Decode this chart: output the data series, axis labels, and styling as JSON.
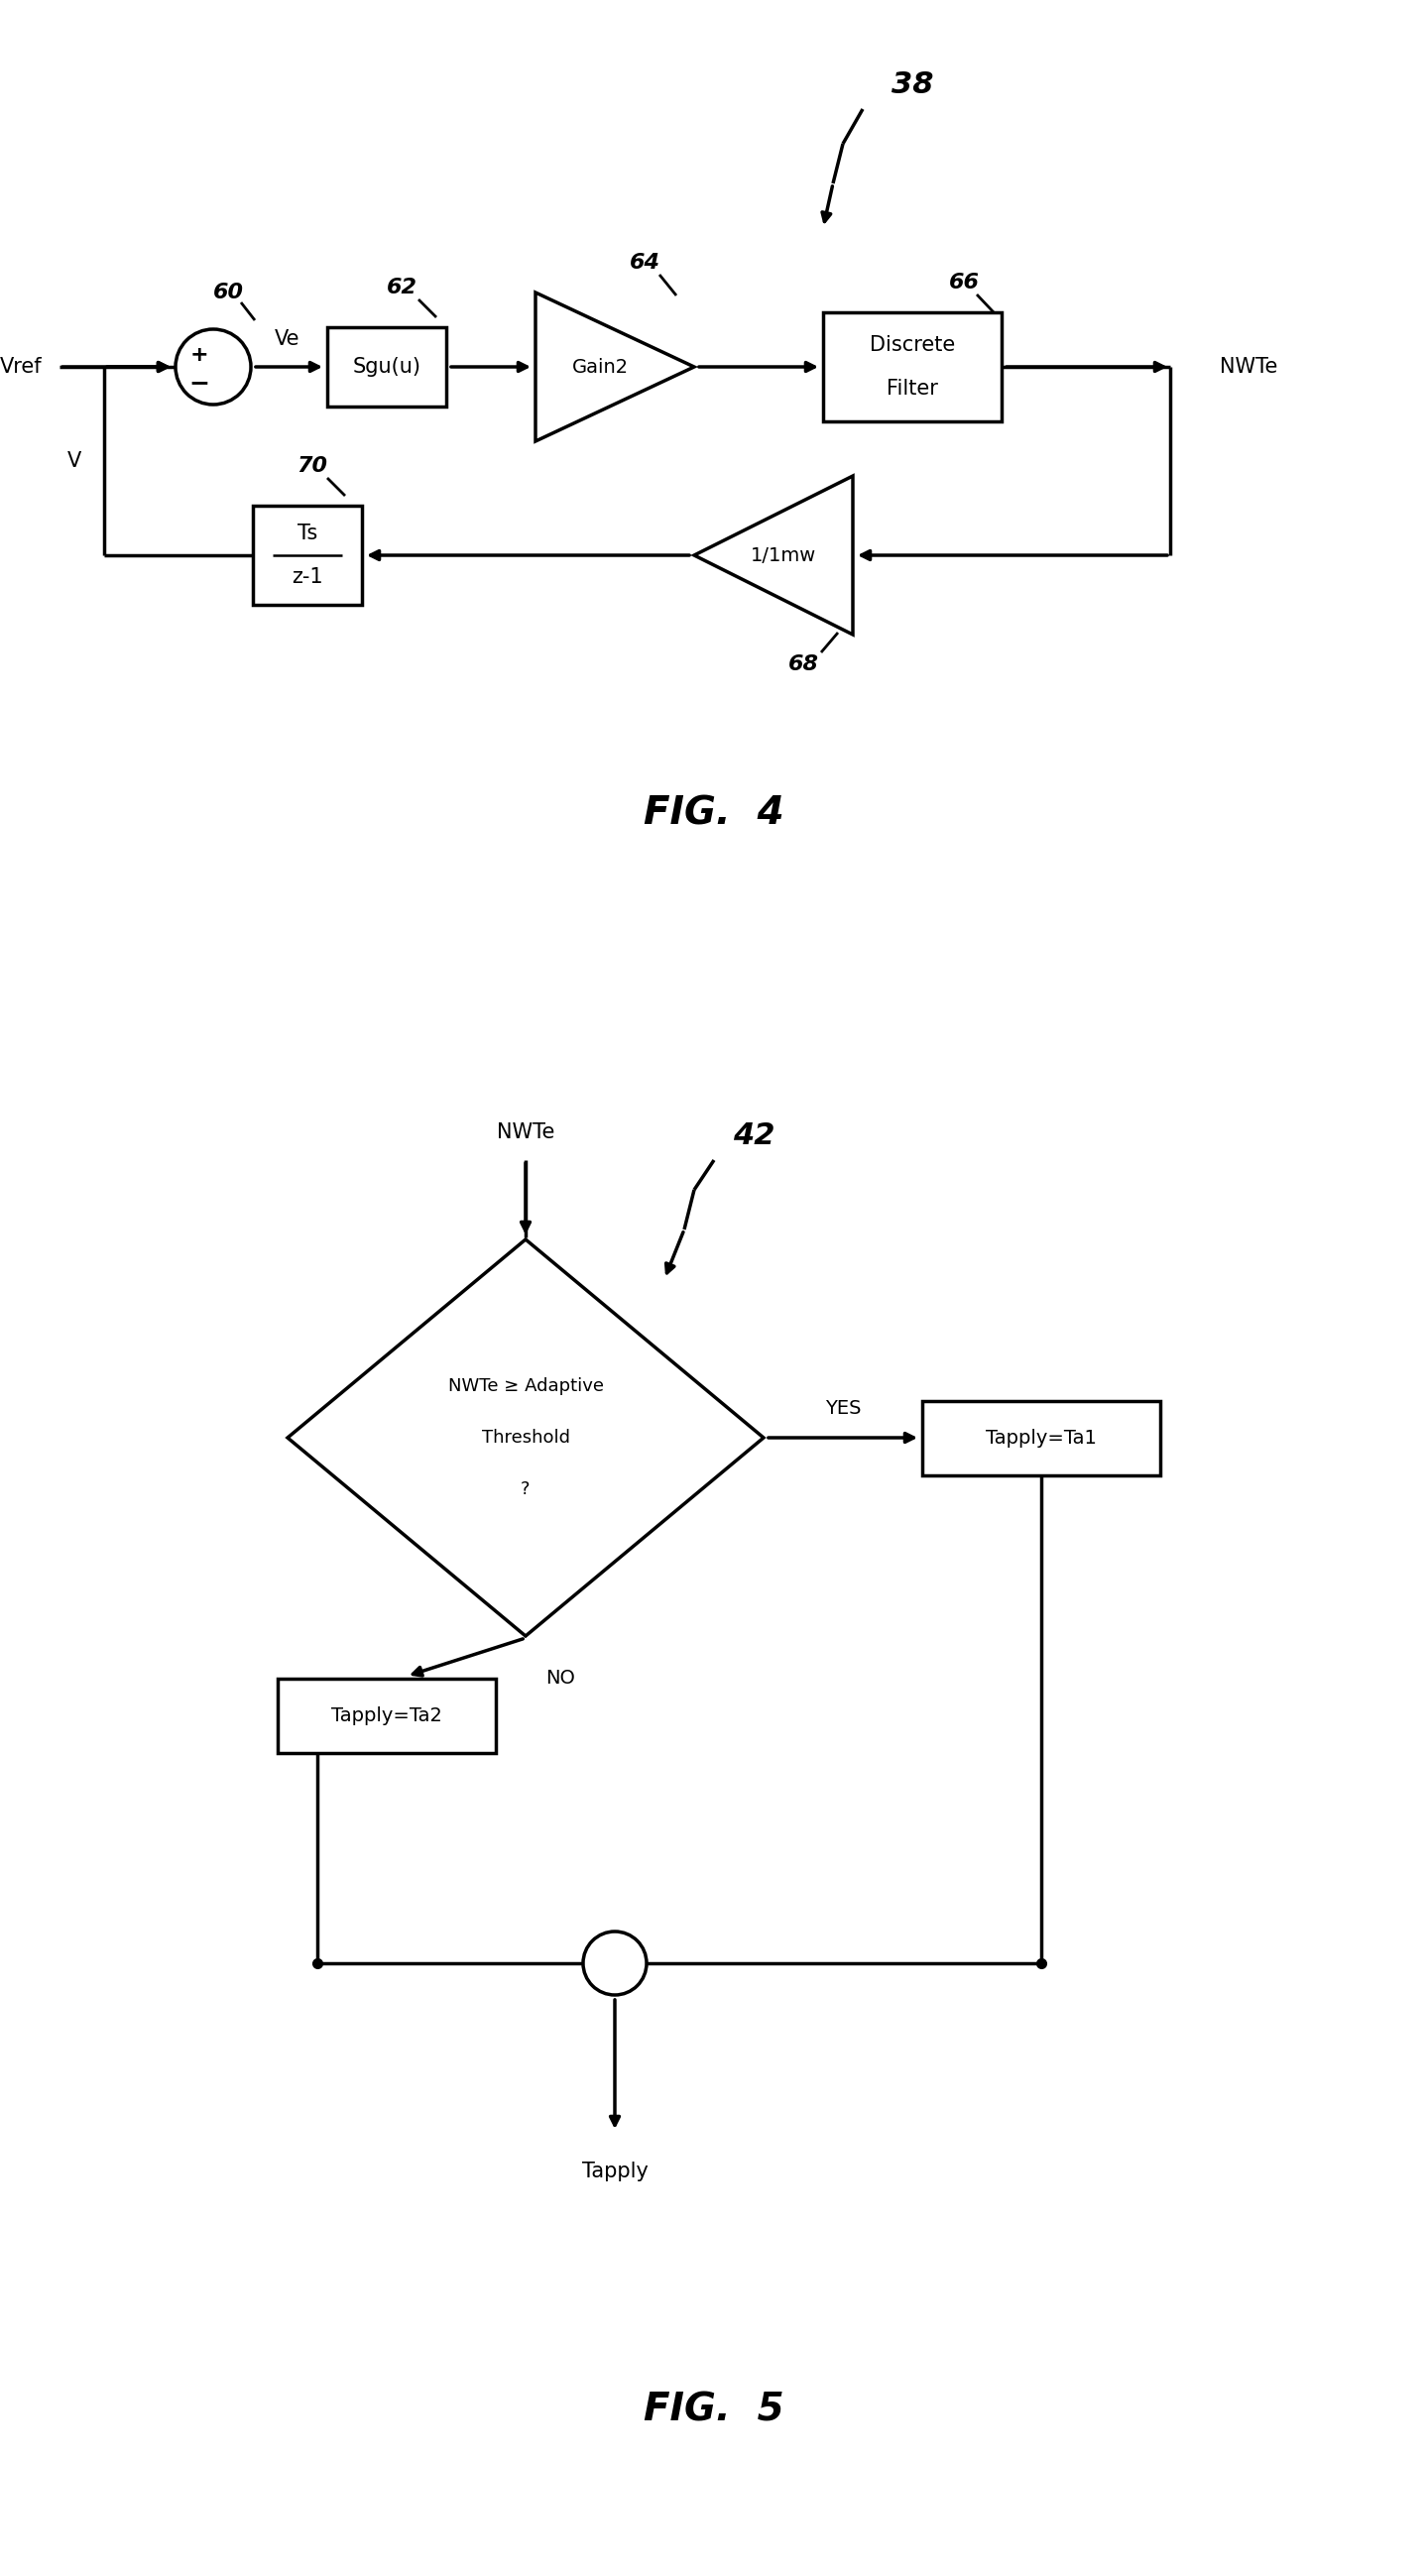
{
  "fig_width": 14.39,
  "fig_height": 25.98,
  "bg_color": "#ffffff",
  "line_color": "#000000",
  "lw": 2.5,
  "fig4": {
    "title": "FIG.  4",
    "label_38": "38",
    "label_60": "60",
    "label_62": "62",
    "label_64": "64",
    "label_66": "66",
    "label_68": "68",
    "label_70": "70",
    "vref_label": "Vref",
    "ve_label": "Ve",
    "v_label": "V",
    "nwte_label": "NWTe",
    "sgu_label": "Sgu(u)",
    "gain2_label": "Gain2",
    "discrete_line1": "Discrete",
    "discrete_line2": "Filter",
    "ts_line1": "Ts",
    "ts_line2": "z-1",
    "gain1mw_label": "1/1mw"
  },
  "fig5": {
    "title": "FIG.  5",
    "label_42": "42",
    "nwte_in": "NWTe",
    "diamond_line1": "NWTe ≥ Adaptive",
    "diamond_line2": "Threshold",
    "diamond_line3": "?",
    "yes_label": "YES",
    "no_label": "NO",
    "ta1_label": "Tapply=Ta1",
    "ta2_label": "Tapply=Ta2",
    "tapply_label": "Tapply"
  }
}
